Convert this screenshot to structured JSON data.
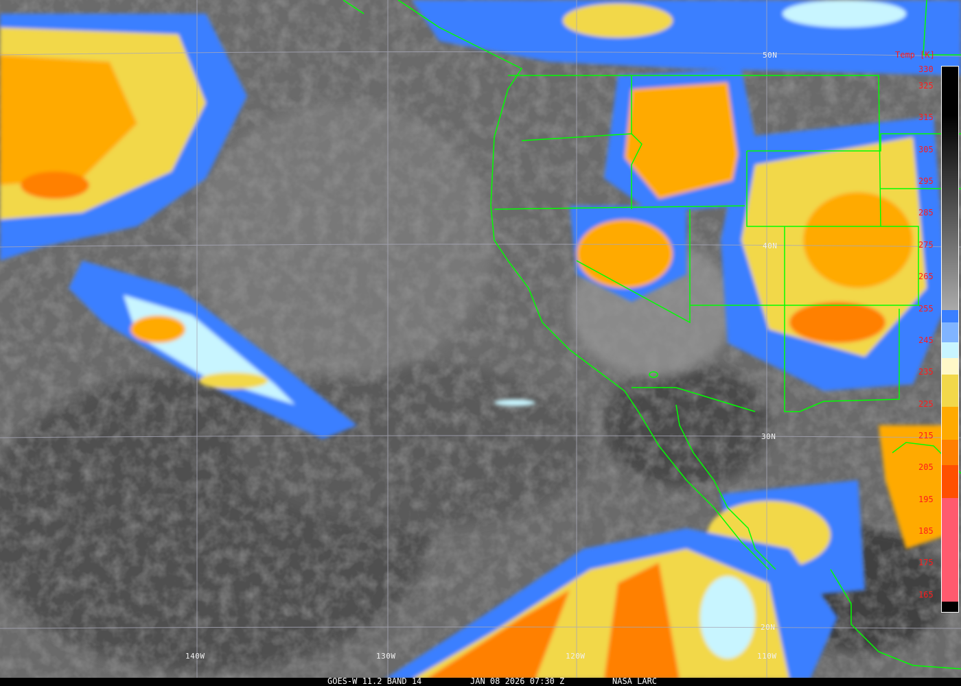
{
  "caption": {
    "satellite": "GOES-W 11.2 BAND 14",
    "datetime": "JAN 08 2026 07:30 Z",
    "source": "NASA LARC"
  },
  "colorbar": {
    "title": "Temp [K]",
    "labels": [
      "330",
      "325",
      "315",
      "305",
      "295",
      "285",
      "275",
      "265",
      "255",
      "245",
      "235",
      "225",
      "215",
      "205",
      "195",
      "185",
      "175",
      "165"
    ],
    "segments": [
      {
        "from": 165,
        "to": 197,
        "color": "#ff5a6e"
      },
      {
        "from": 197,
        "to": 207,
        "color": "#ff5000"
      },
      {
        "from": 207,
        "to": 215,
        "color": "#ff8000"
      },
      {
        "from": 215,
        "to": 225,
        "color": "#ffaa00"
      },
      {
        "from": 225,
        "to": 235,
        "color": "#f2d84a"
      },
      {
        "from": 235,
        "to": 240,
        "color": "#fff8c8"
      },
      {
        "from": 240,
        "to": 245,
        "color": "#c8f5ff"
      },
      {
        "from": 245,
        "to": 251,
        "color": "#80b4ff"
      },
      {
        "from": 251,
        "to": 255,
        "color": "#3a7fff"
      }
    ],
    "gray_range": [
      255,
      315
    ],
    "label_color": "#ff1a1a"
  },
  "grid": {
    "latitudes": [
      "50N",
      "40N",
      "30N",
      "20N"
    ],
    "longitudes": [
      "140W",
      "130W",
      "120W",
      "110W"
    ]
  },
  "border_color": "#00ff00"
}
